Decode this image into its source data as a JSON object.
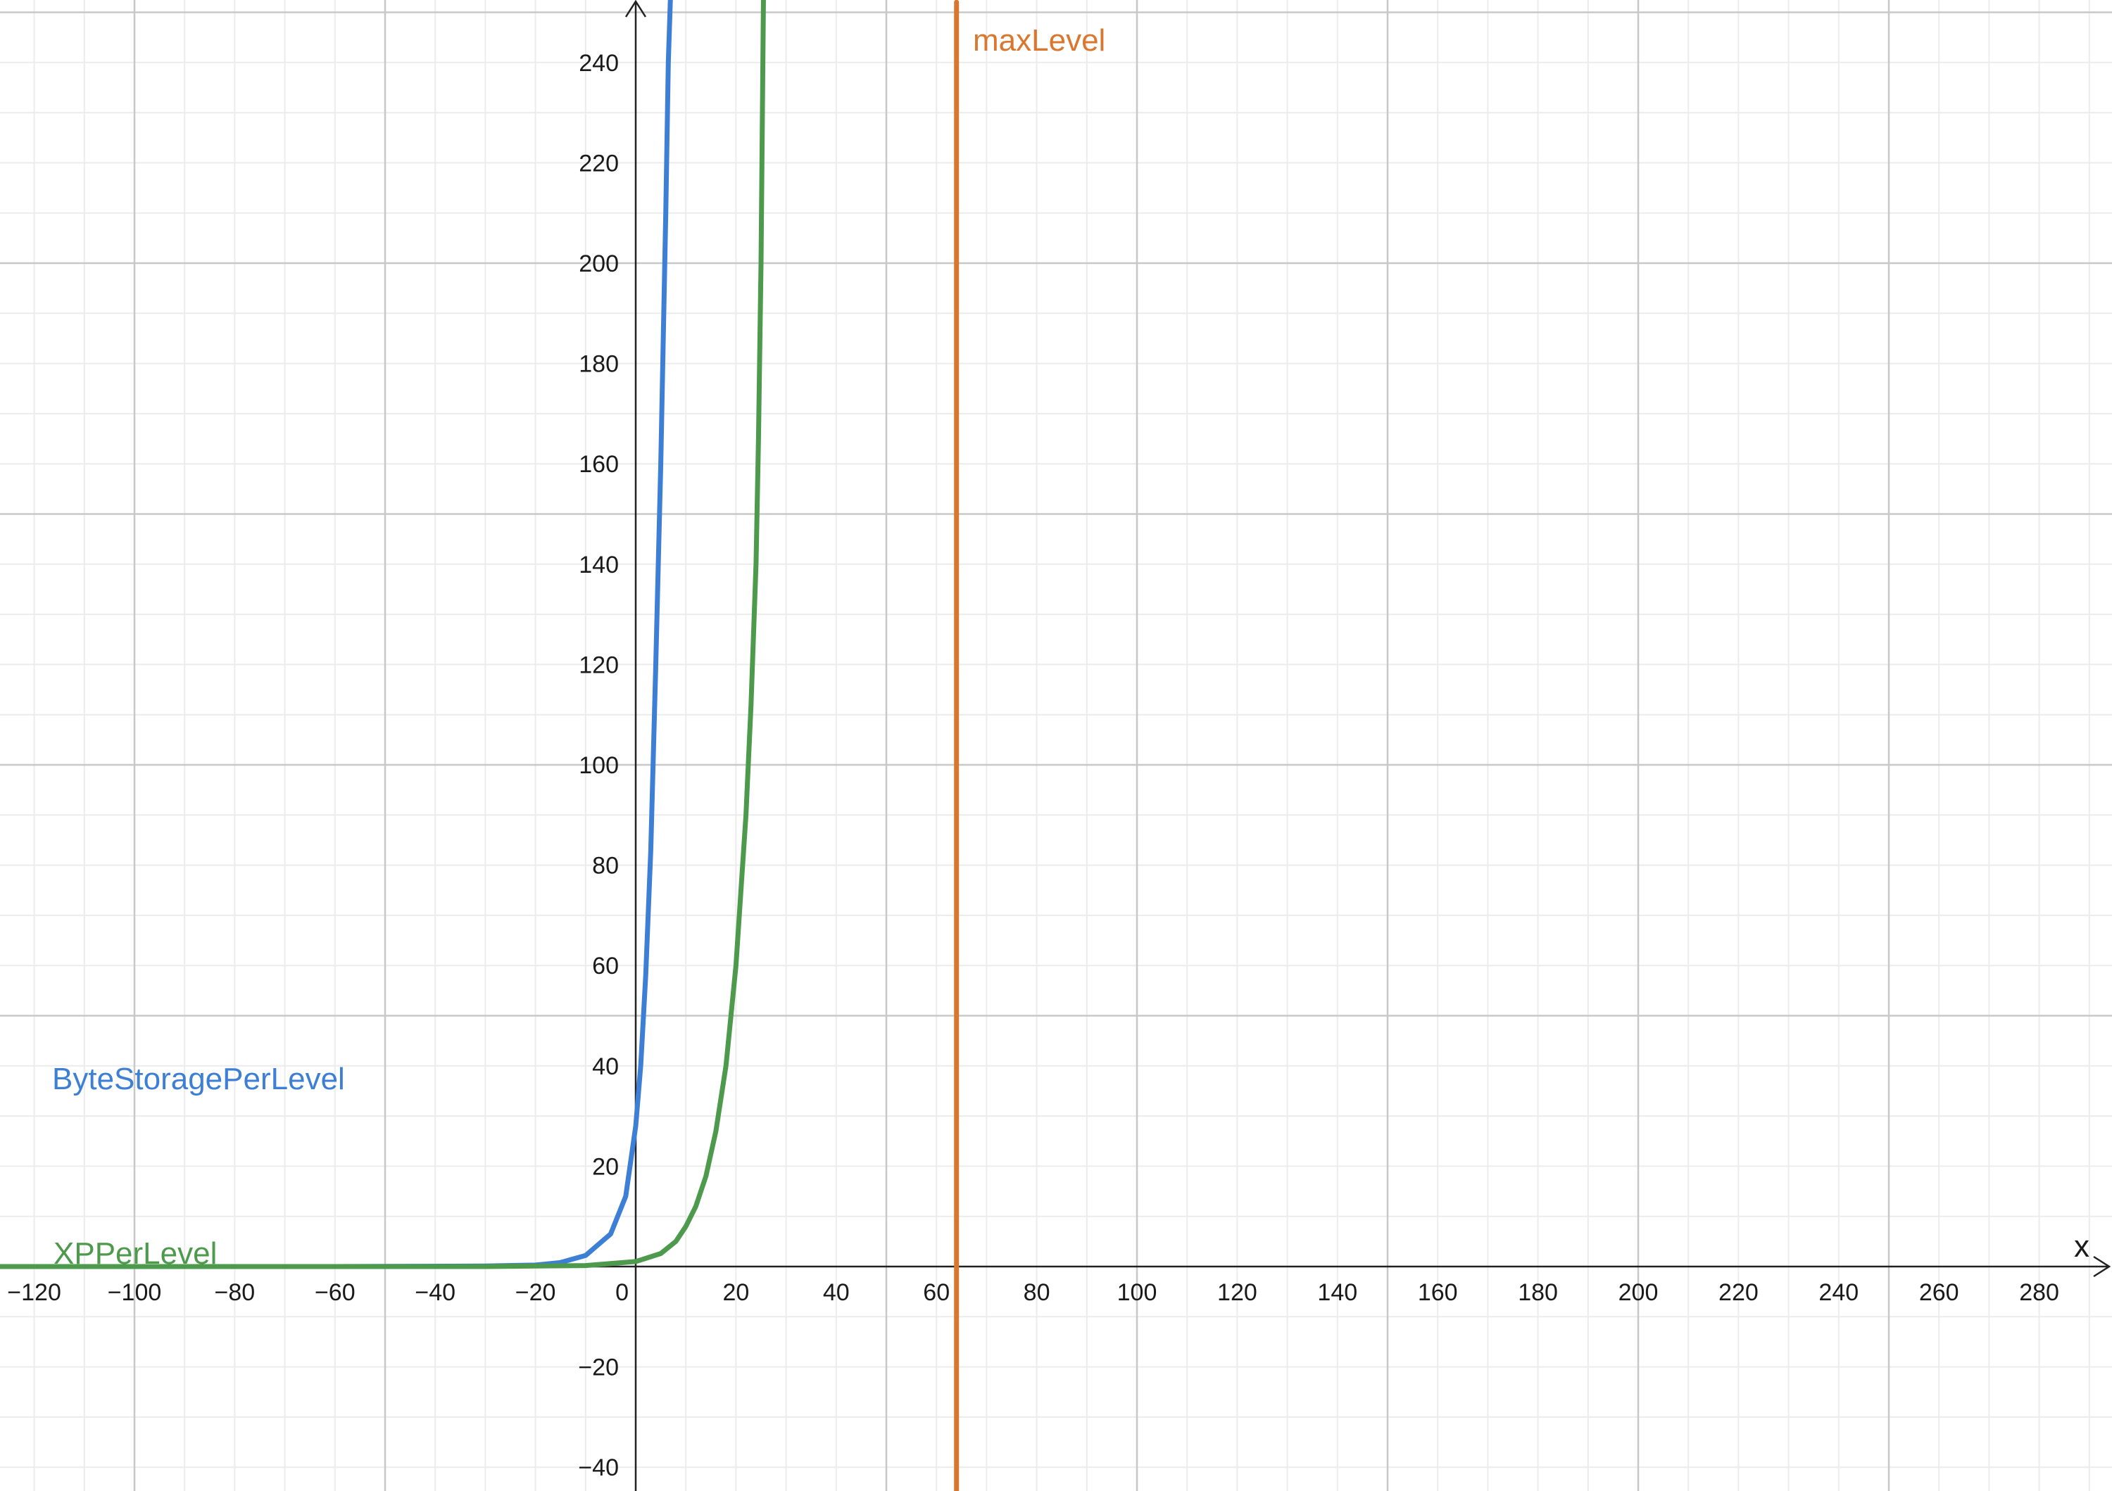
{
  "chart_data": {
    "type": "line",
    "title": "",
    "xlabel": "x",
    "ylabel": "",
    "xlim": [
      -127,
      294
    ],
    "ylim": [
      -45,
      252
    ],
    "grid": true,
    "x_ticks": [
      -120,
      -100,
      -80,
      -60,
      -40,
      -20,
      0,
      20,
      40,
      60,
      80,
      100,
      120,
      140,
      160,
      180,
      200,
      220,
      240,
      260,
      280
    ],
    "y_ticks": [
      -40,
      -20,
      20,
      40,
      60,
      80,
      100,
      120,
      140,
      160,
      180,
      200,
      220,
      240
    ],
    "x_tick_labels": [
      "−120",
      "−100",
      "−80",
      "−60",
      "−40",
      "−20",
      "0",
      "20",
      "40",
      "60",
      "80",
      "100",
      "120",
      "140",
      "160",
      "180",
      "200",
      "220",
      "240",
      "260",
      "280"
    ],
    "y_tick_labels": [
      "−40",
      "−20",
      "20",
      "40",
      "60",
      "80",
      "100",
      "120",
      "140",
      "160",
      "180",
      "200",
      "220",
      "240"
    ],
    "series": [
      {
        "name": "ByteStoragePerLevel",
        "color": "#3d7fd4",
        "x": [
          -127,
          -60,
          -30,
          -20,
          -15,
          -10,
          -5,
          -2,
          0,
          1,
          2,
          3,
          4,
          5,
          6,
          6.5,
          7
        ],
        "y": [
          0,
          0,
          0.1,
          0.3,
          0.8,
          2.2,
          6.5,
          14,
          28,
          40,
          58,
          83,
          120,
          160,
          210,
          240,
          255
        ]
      },
      {
        "name": "XPPerLevel",
        "color": "#4d9a4d",
        "x": [
          -127,
          -30,
          -10,
          0,
          5,
          8,
          10,
          12,
          14,
          16,
          18,
          20,
          22,
          23,
          24,
          24.5,
          25,
          25.5
        ],
        "y": [
          0,
          0,
          0.2,
          1,
          2.6,
          5,
          8,
          12,
          18,
          27,
          40,
          60,
          90,
          112,
          140,
          165,
          200,
          255
        ]
      },
      {
        "name": "maxLevel",
        "color": "#d9772e",
        "x": [
          64,
          64
        ],
        "y": [
          -45,
          252
        ]
      }
    ]
  }
}
